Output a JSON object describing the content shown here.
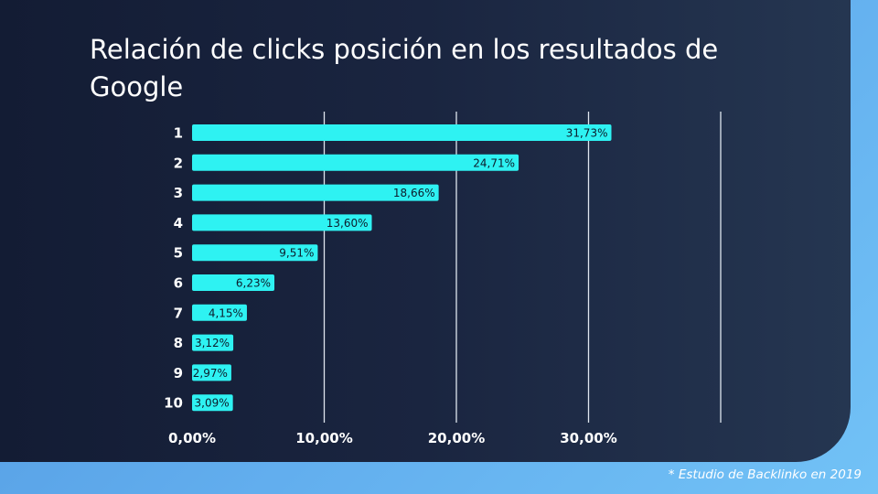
{
  "slide": {
    "title": "Relación de clicks posición en los resultados de Google",
    "footnote": "* Estudio de Backlinko en 2019"
  },
  "colors": {
    "bar": "#2ef2f2",
    "gridline": "#dfe6ee",
    "text": "#ffffff",
    "label_text": "#0c1c2c"
  },
  "chart_data": {
    "type": "bar",
    "orientation": "horizontal",
    "categories": [
      "1",
      "2",
      "3",
      "4",
      "5",
      "6",
      "7",
      "8",
      "9",
      "10"
    ],
    "values": [
      31.73,
      24.71,
      18.66,
      13.6,
      9.51,
      6.23,
      4.15,
      3.12,
      2.97,
      3.09
    ],
    "value_labels": [
      "31,73%",
      "24,71%",
      "18,66%",
      "13,60%",
      "9,51%",
      "6,23%",
      "4,15%",
      "3,12%",
      "2,97%",
      "3,09%"
    ],
    "x_ticks": [
      0,
      10,
      20,
      30,
      40
    ],
    "x_tick_labels": [
      "0,00%",
      "10,00%",
      "20,00%",
      "30,00%",
      ""
    ],
    "xlim": [
      0,
      40
    ],
    "grid": true,
    "legend": "none"
  }
}
